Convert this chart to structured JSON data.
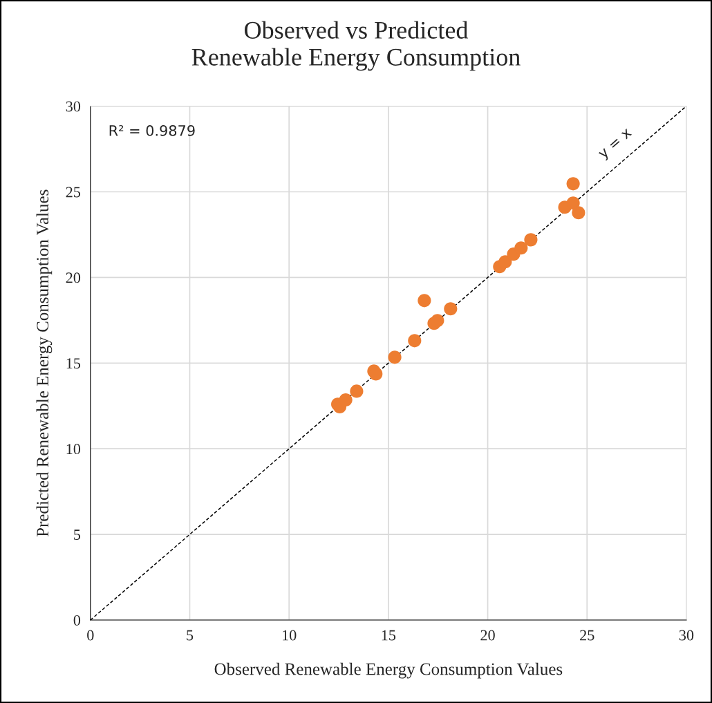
{
  "chart_data": {
    "type": "scatter",
    "title": "Observed vs Predicted\nRenewable Energy Consumption",
    "xlabel": "Observed Renewable Energy Consumption Values",
    "ylabel": "Predicted Renewable Energy Consumption Values",
    "annotations": [
      "R² = 0.9879"
    ],
    "series": [
      {
        "color": "#ed7d31",
        "marker": "circle",
        "x": [
          12.45,
          12.55,
          12.85,
          13.4,
          14.27,
          14.37,
          15.32,
          16.32,
          16.81,
          17.3,
          17.47,
          18.13,
          20.6,
          20.88,
          21.3,
          21.68,
          22.17,
          23.88,
          24.3,
          24.57,
          24.3
        ],
        "values": [
          12.6,
          12.45,
          12.85,
          13.36,
          14.53,
          14.37,
          15.34,
          16.31,
          18.65,
          17.32,
          17.48,
          18.17,
          20.63,
          20.91,
          21.36,
          21.72,
          22.2,
          24.1,
          24.34,
          23.78,
          25.47
        ]
      },
      {
        "type": "line",
        "name": "y = x",
        "color": "#000000",
        "line_style": "dashed",
        "x": [
          0,
          30
        ],
        "values": [
          0,
          30
        ]
      }
    ],
    "xlim": [
      0,
      30
    ],
    "ylim": [
      0,
      30
    ],
    "xticks": [
      0,
      5,
      10,
      15,
      20,
      25,
      30
    ],
    "yticks": [
      0,
      5,
      10,
      15,
      20,
      25,
      30
    ],
    "grid": true,
    "legend": false
  }
}
